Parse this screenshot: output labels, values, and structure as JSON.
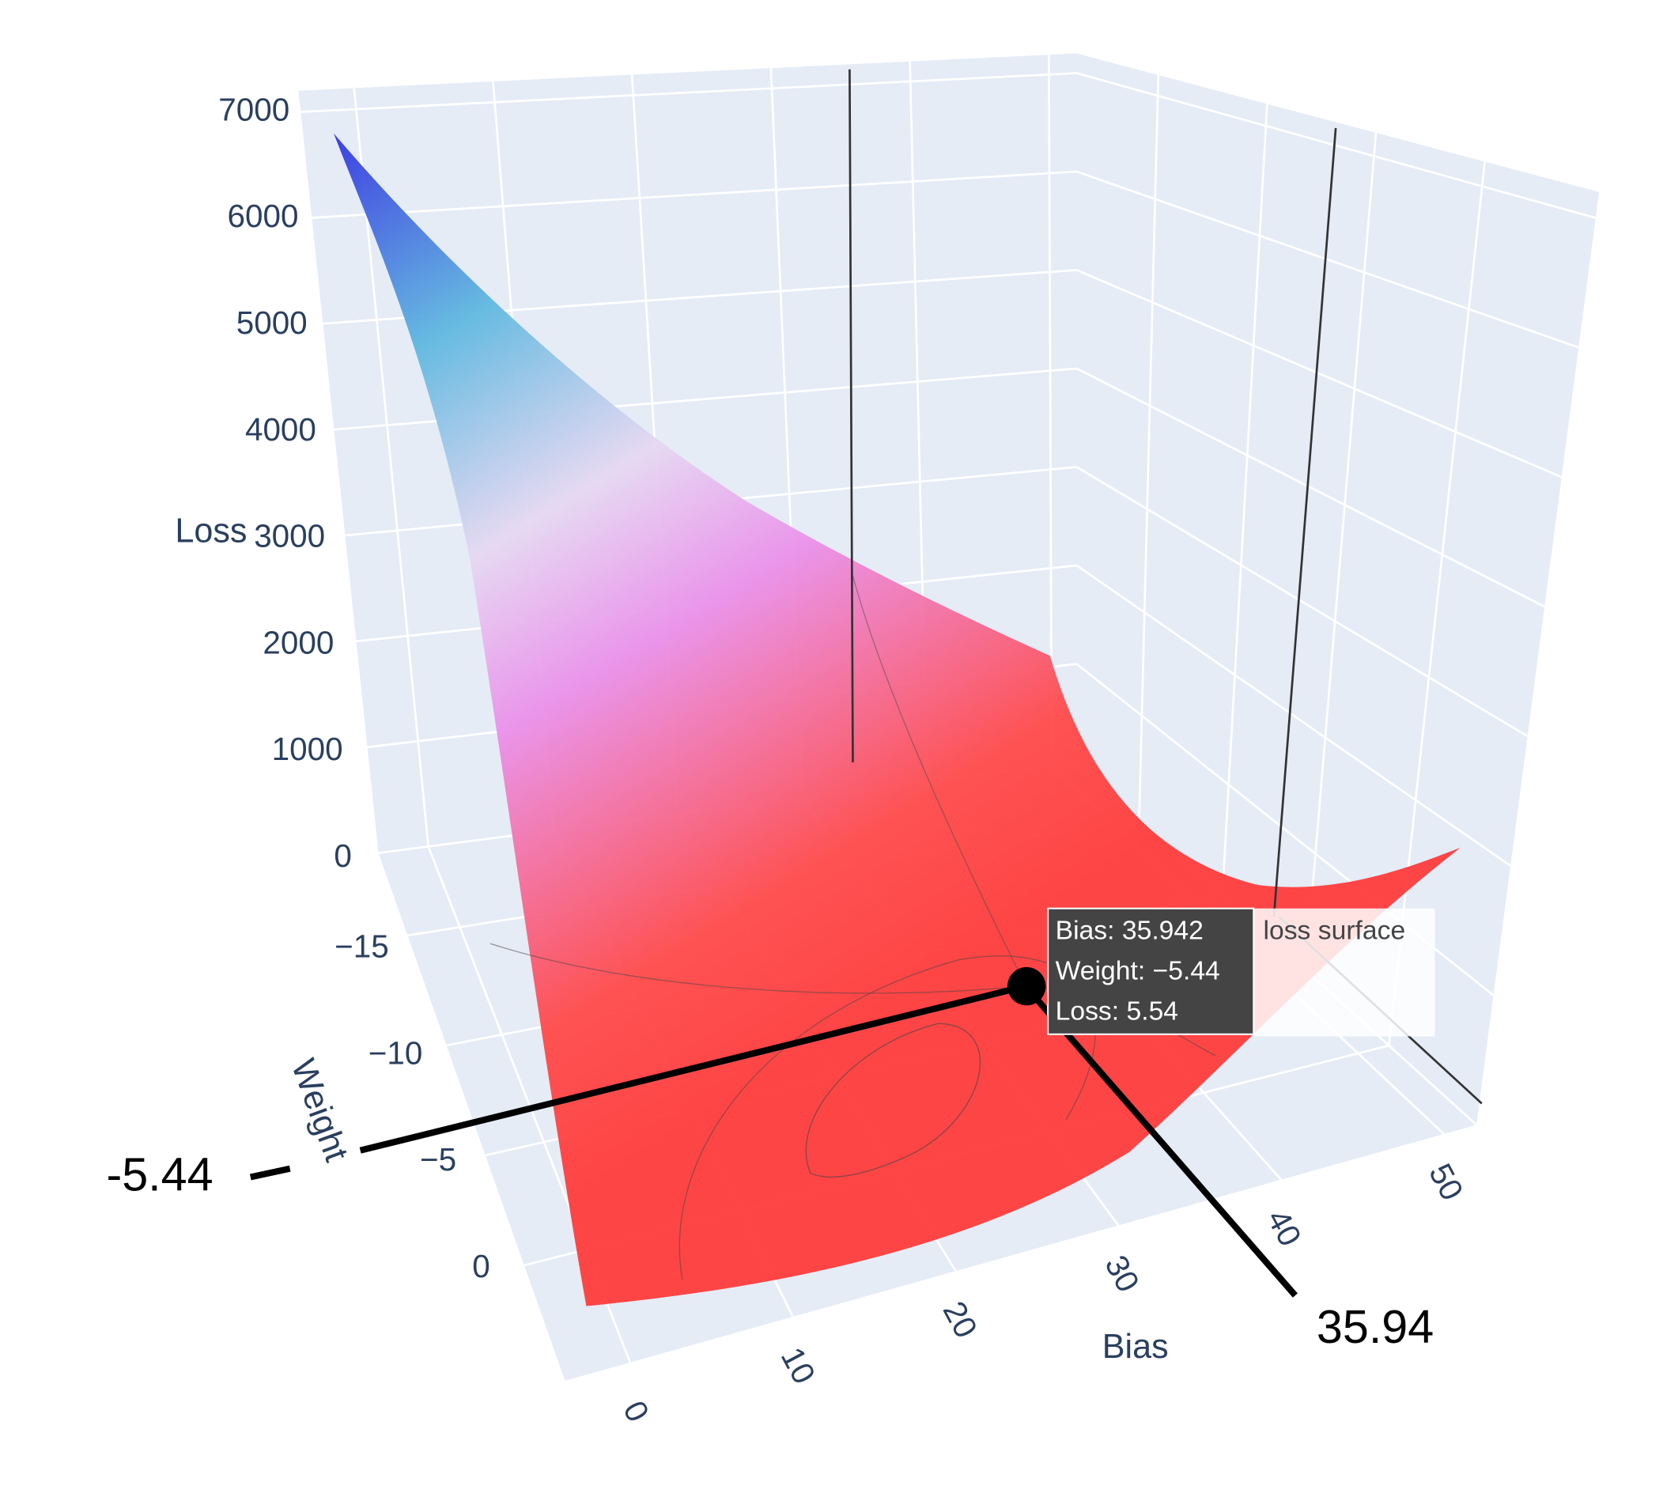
{
  "chart_data": {
    "type": "surface3d",
    "trace_name": "loss surface",
    "xaxis_title": "Bias",
    "yaxis_title": "Weight",
    "zaxis_title": "Loss",
    "xlim": [
      -4,
      52
    ],
    "xticks": [
      0,
      10,
      20,
      30,
      40,
      50
    ],
    "ylim": [
      -18.75,
      5.25
    ],
    "yticks": [
      {
        "value": -15,
        "label": "−15"
      },
      {
        "value": -10,
        "label": "−10"
      },
      {
        "value": -5,
        "label": "−5"
      },
      0
    ],
    "zlim": [
      0,
      7200
    ],
    "zticks": [
      0,
      1000,
      2000,
      3000,
      4000,
      5000,
      6000,
      7000
    ],
    "grid": true,
    "highlight": {
      "bias": 35.942,
      "weight": -5.44,
      "loss": 5.54
    },
    "tooltip": [
      "Bias: 35.942",
      "Weight: −5.44",
      "Loss: 5.54"
    ],
    "annotations": [
      "-5.44",
      "35.94"
    ]
  }
}
